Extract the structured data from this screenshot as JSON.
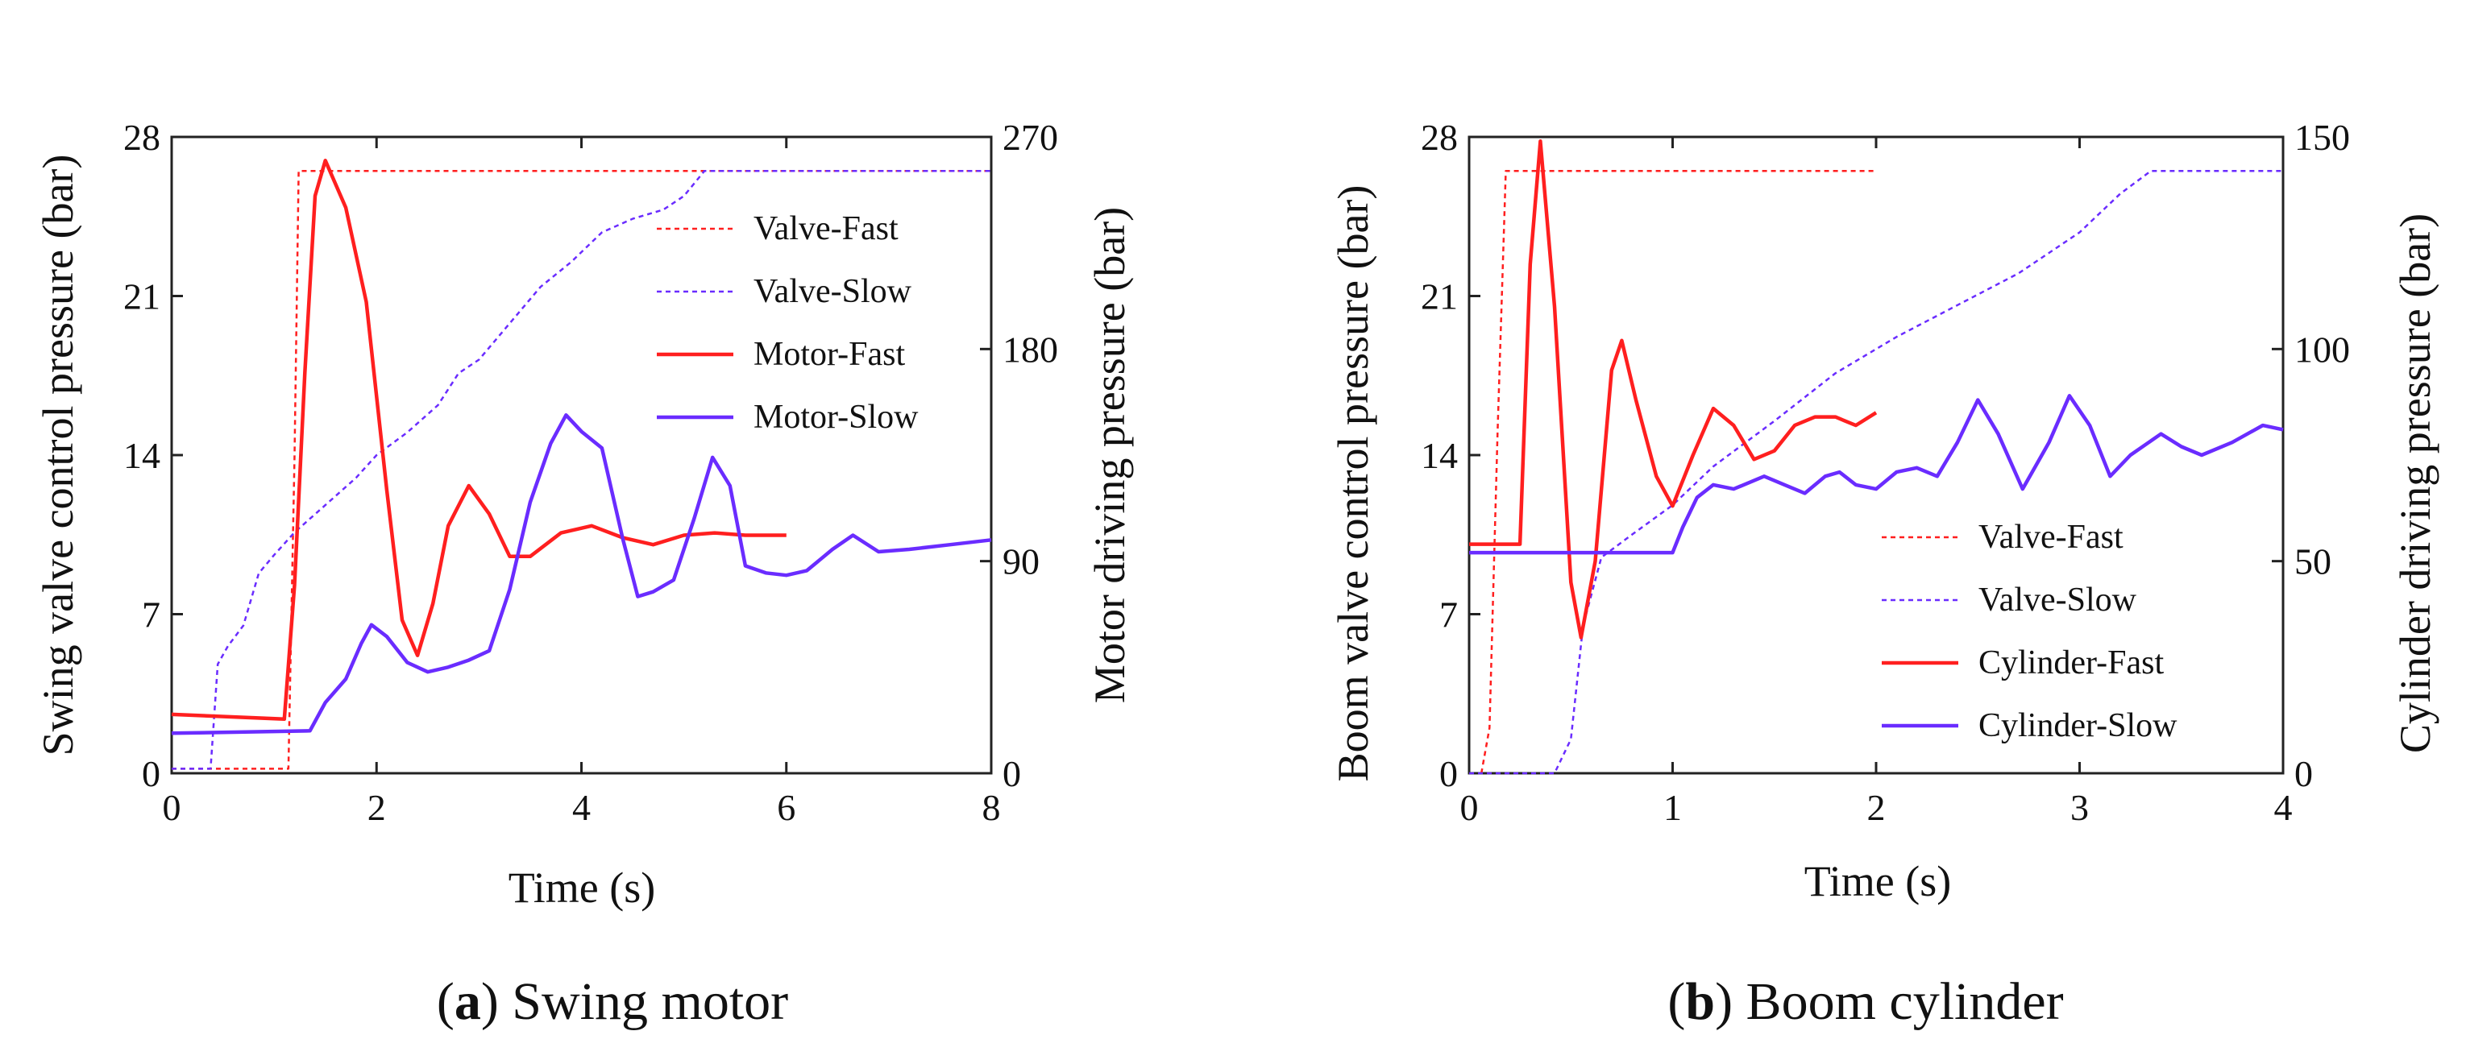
{
  "colors": {
    "fast": "#ff1f1f",
    "slow": "#6a2cff",
    "axis": "#222222"
  },
  "chart_data": [
    {
      "id": "a",
      "type": "line",
      "caption_letter": "a",
      "caption_text": ") Swing motor",
      "xlabel": "Time (s)",
      "ylabel": "Swing valve control pressure (bar)",
      "y2label": "Motor driving pressure (bar)",
      "xlim": [
        0,
        8
      ],
      "ylim": [
        0,
        28
      ],
      "y2lim": [
        0,
        270
      ],
      "xticks": [
        0,
        2,
        4,
        6,
        8
      ],
      "yticks": [
        0,
        7,
        14,
        21,
        28
      ],
      "y2ticks": [
        0,
        90,
        180,
        270
      ],
      "legend_position": "upper-right",
      "series": [
        {
          "name": "Valve-Fast",
          "axis": "left",
          "style": "dashed",
          "color_key": "fast",
          "x": [
            0,
            1.14,
            1.2,
            1.24,
            8
          ],
          "y": [
            0.2,
            0.2,
            14,
            26.5,
            26.5
          ]
        },
        {
          "name": "Valve-Slow",
          "axis": "left",
          "style": "dashed",
          "color_key": "slow",
          "x": [
            0,
            0.38,
            0.45,
            0.55,
            0.7,
            0.85,
            1.0,
            1.2,
            1.5,
            1.8,
            2.0,
            2.3,
            2.6,
            2.8,
            3.0,
            3.3,
            3.6,
            3.9,
            4.2,
            4.5,
            4.8,
            5.0,
            5.2,
            8
          ],
          "y": [
            0.2,
            0.2,
            4.8,
            5.6,
            6.5,
            8.8,
            9.6,
            10.6,
            11.8,
            13.0,
            14.0,
            15.0,
            16.2,
            17.6,
            18.2,
            19.8,
            21.4,
            22.5,
            23.8,
            24.4,
            24.8,
            25.4,
            26.5,
            26.5
          ]
        },
        {
          "name": "Motor-Fast",
          "axis": "right",
          "style": "solid",
          "color_key": "fast",
          "x": [
            0,
            1.1,
            1.2,
            1.3,
            1.4,
            1.5,
            1.7,
            1.9,
            2.1,
            2.25,
            2.4,
            2.55,
            2.7,
            2.9,
            3.1,
            3.3,
            3.5,
            3.8,
            4.1,
            4.4,
            4.7,
            5.0,
            5.3,
            5.6,
            6.0
          ],
          "y": [
            25,
            23,
            80,
            170,
            245,
            260,
            240,
            200,
            120,
            65,
            50,
            72,
            105,
            122,
            110,
            92,
            92,
            102,
            105,
            100,
            97,
            101,
            102,
            101,
            101
          ]
        },
        {
          "name": "Motor-Slow",
          "axis": "right",
          "style": "solid",
          "color_key": "slow",
          "x": [
            0,
            1.35,
            1.5,
            1.7,
            1.85,
            1.95,
            2.1,
            2.3,
            2.5,
            2.7,
            2.9,
            3.1,
            3.3,
            3.5,
            3.7,
            3.85,
            4.0,
            4.2,
            4.4,
            4.55,
            4.7,
            4.9,
            5.1,
            5.28,
            5.45,
            5.6,
            5.8,
            6.0,
            6.2,
            6.45,
            6.65,
            6.9,
            7.2,
            7.6,
            8.0
          ],
          "y": [
            17,
            18,
            30,
            40,
            55,
            63,
            58,
            47,
            43,
            45,
            48,
            52,
            78,
            115,
            140,
            152,
            145,
            138,
            100,
            75,
            77,
            82,
            108,
            134,
            122,
            88,
            85,
            84,
            86,
            95,
            101,
            94,
            95,
            97,
            99
          ]
        }
      ]
    },
    {
      "id": "b",
      "type": "line",
      "caption_letter": "b",
      "caption_text": ") Boom cylinder",
      "xlabel": "Time (s)",
      "ylabel": "Boom valve control pressure (bar)",
      "y2label": "Cylinder driving pressure (bar)",
      "xlim": [
        0,
        4
      ],
      "ylim": [
        0,
        28
      ],
      "y2lim": [
        0,
        150
      ],
      "xticks": [
        0,
        1,
        2,
        3,
        4
      ],
      "yticks": [
        0,
        7,
        14,
        21,
        28
      ],
      "y2ticks": [
        0,
        50,
        100,
        150
      ],
      "legend_position": "lower-right",
      "series": [
        {
          "name": "Valve-Fast",
          "axis": "left",
          "style": "dashed",
          "color_key": "fast",
          "x": [
            0.06,
            0.1,
            0.14,
            0.18,
            2.0
          ],
          "y": [
            0,
            2,
            15,
            26.5,
            26.5
          ]
        },
        {
          "name": "Valve-Slow",
          "axis": "left",
          "style": "dashed",
          "color_key": "slow",
          "x": [
            0,
            0.42,
            0.5,
            0.56,
            0.65,
            0.8,
            1.0,
            1.2,
            1.5,
            1.8,
            2.1,
            2.4,
            2.7,
            3.0,
            3.2,
            3.35,
            4.0
          ],
          "y": [
            0,
            0,
            1.5,
            6.5,
            9.5,
            10.5,
            11.8,
            13.5,
            15.5,
            17.6,
            19.2,
            20.6,
            22.0,
            23.8,
            25.5,
            26.5,
            26.5
          ]
        },
        {
          "name": "Cylinder-Fast",
          "axis": "right",
          "style": "solid",
          "color_key": "fast",
          "x": [
            0,
            0.25,
            0.3,
            0.35,
            0.42,
            0.5,
            0.55,
            0.62,
            0.7,
            0.75,
            0.82,
            0.92,
            1.0,
            1.1,
            1.2,
            1.3,
            1.4,
            1.5,
            1.6,
            1.7,
            1.8,
            1.9,
            2.0
          ],
          "y": [
            54,
            54,
            120,
            149,
            110,
            45,
            32,
            50,
            95,
            102,
            88,
            70,
            63,
            75,
            86,
            82,
            74,
            76,
            82,
            84,
            84,
            82,
            85
          ]
        },
        {
          "name": "Cylinder-Slow",
          "axis": "right",
          "style": "solid",
          "color_key": "slow",
          "x": [
            0,
            1.0,
            1.05,
            1.12,
            1.2,
            1.3,
            1.45,
            1.55,
            1.65,
            1.75,
            1.82,
            1.9,
            2.0,
            2.1,
            2.2,
            2.3,
            2.4,
            2.5,
            2.6,
            2.72,
            2.85,
            2.95,
            3.05,
            3.15,
            3.25,
            3.4,
            3.5,
            3.6,
            3.75,
            3.9,
            4.0
          ],
          "y": [
            52,
            52,
            58,
            65,
            68,
            67,
            70,
            68,
            66,
            70,
            71,
            68,
            67,
            71,
            72,
            70,
            78,
            88,
            80,
            67,
            78,
            89,
            82,
            70,
            75,
            80,
            77,
            75,
            78,
            82,
            81
          ]
        }
      ]
    }
  ]
}
